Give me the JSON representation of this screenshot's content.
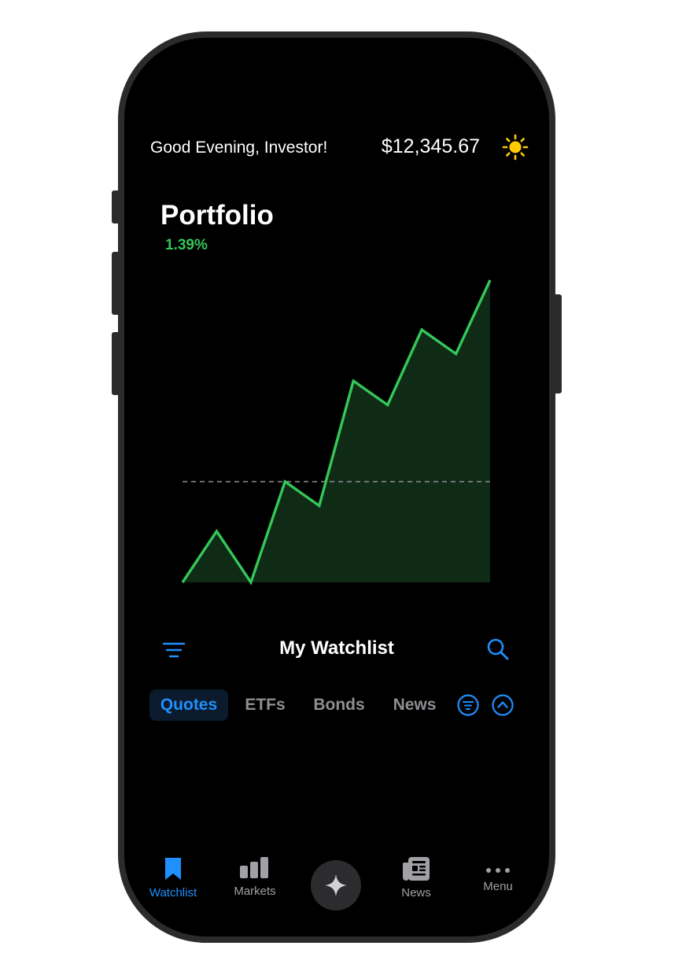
{
  "header": {
    "greeting": "Good Evening, Investor!",
    "balance": "$12,345.67",
    "weather_icon": "sun-icon"
  },
  "portfolio": {
    "title": "Portfolio",
    "change": "1.39%",
    "accent_color": "#34c759"
  },
  "chart_data": {
    "type": "area",
    "title": "",
    "values": [
      0,
      34,
      0,
      67,
      51,
      134,
      118,
      168,
      152,
      201
    ],
    "baseline_value": 67,
    "ylim": [
      0,
      201
    ],
    "line_color": "#34c759",
    "fill_color": "#0f2a15",
    "grid": false
  },
  "watchlist": {
    "title": "My Watchlist",
    "menu_icon": "filter-lines-icon",
    "search_icon": "search-icon"
  },
  "tabs": [
    {
      "label": "Quotes",
      "active": true
    },
    {
      "label": "ETFs",
      "active": false
    },
    {
      "label": "Bonds",
      "active": false
    },
    {
      "label": "News",
      "active": false
    }
  ],
  "tab_actions": {
    "filter_icon": "filter-circle-icon",
    "collapse_icon": "chevron-up-circle-icon"
  },
  "bottom_nav": {
    "items": [
      {
        "label": "Watchlist",
        "icon": "bookmark-icon",
        "active": true
      },
      {
        "label": "Markets",
        "icon": "bar-chart-icon",
        "active": false
      },
      {
        "label": "",
        "icon": "sparkle-icon",
        "active": false
      },
      {
        "label": "News",
        "icon": "newspaper-icon",
        "active": false
      },
      {
        "label": "Menu",
        "icon": "ellipsis-icon",
        "active": false
      }
    ]
  },
  "colors": {
    "accent_blue": "#1e90ff",
    "positive_green": "#34c759",
    "background": "#000000"
  }
}
